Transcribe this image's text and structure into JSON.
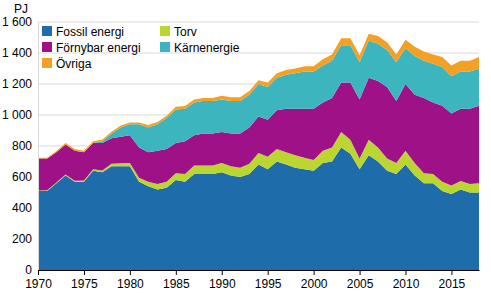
{
  "chart_data": {
    "type": "stacked_area",
    "y_label": "PJ",
    "x": [
      1970,
      1971,
      1972,
      1973,
      1974,
      1975,
      1976,
      1977,
      1978,
      1979,
      1980,
      1981,
      1982,
      1983,
      1984,
      1985,
      1986,
      1987,
      1988,
      1989,
      1990,
      1991,
      1992,
      1993,
      1994,
      1995,
      1996,
      1997,
      1998,
      1999,
      2000,
      2001,
      2002,
      2003,
      2004,
      2005,
      2006,
      2007,
      2008,
      2009,
      2010,
      2011,
      2012,
      2013,
      2014,
      2015,
      2016,
      2017,
      2018
    ],
    "xlim": [
      1970,
      2018
    ],
    "xticks": [
      1970,
      1975,
      1980,
      1985,
      1990,
      1995,
      2000,
      2005,
      2010,
      2015
    ],
    "ylim": [
      0,
      1600
    ],
    "yticks": [
      0,
      200,
      400,
      600,
      800,
      {
        "value": 1000,
        "label": "1 000"
      },
      {
        "value": 1200,
        "label": "1 200"
      },
      {
        "value": 1400,
        "label": "1 400"
      },
      {
        "value": 1600,
        "label": "1 600"
      }
    ],
    "grid": true,
    "stacked": true,
    "legend": "top-left",
    "series": [
      {
        "name": "Fossil energi",
        "color": "#1f6cab",
        "values": [
          510,
          510,
          560,
          610,
          570,
          570,
          640,
          630,
          670,
          670,
          670,
          570,
          540,
          520,
          530,
          580,
          570,
          620,
          620,
          620,
          630,
          610,
          600,
          620,
          680,
          650,
          700,
          680,
          660,
          650,
          640,
          690,
          700,
          790,
          750,
          650,
          740,
          700,
          640,
          620,
          680,
          610,
          560,
          560,
          510,
          490,
          520,
          500,
          500
        ]
      },
      {
        "name": "Torv",
        "color": "#bcd631",
        "values": [
          3,
          4,
          5,
          6,
          6,
          8,
          10,
          12,
          15,
          18,
          20,
          25,
          30,
          35,
          40,
          45,
          50,
          55,
          55,
          55,
          60,
          60,
          60,
          65,
          75,
          80,
          80,
          80,
          80,
          75,
          70,
          80,
          90,
          100,
          90,
          70,
          100,
          90,
          80,
          70,
          90,
          80,
          65,
          60,
          60,
          55,
          55,
          55,
          60
        ]
      },
      {
        "name": "Förnybar energi",
        "color": "#9e1187",
        "values": [
          207,
          206,
          195,
          194,
          194,
          182,
          170,
          178,
          165,
          172,
          180,
          195,
          190,
          215,
          210,
          195,
          210,
          195,
          205,
          205,
          200,
          210,
          220,
          235,
          235,
          240,
          250,
          280,
          300,
          315,
          330,
          310,
          320,
          320,
          370,
          380,
          400,
          430,
          460,
          400,
          430,
          440,
          485,
          460,
          490,
          465,
          465,
          485,
          500
        ]
      },
      {
        "name": "Kärnenergie",
        "color": "#3cb5be",
        "values": [
          0,
          0,
          0,
          0,
          0,
          0,
          0,
          10,
          30,
          60,
          70,
          150,
          160,
          170,
          200,
          215,
          210,
          210,
          210,
          210,
          210,
          210,
          210,
          210,
          210,
          210,
          210,
          220,
          230,
          240,
          240,
          240,
          240,
          240,
          240,
          240,
          240,
          240,
          240,
          250,
          230,
          250,
          240,
          250,
          250,
          240,
          240,
          240,
          240
        ]
      },
      {
        "name": "Övriga",
        "color": "#f4a024",
        "values": [
          5,
          5,
          8,
          10,
          10,
          10,
          10,
          12,
          12,
          12,
          12,
          12,
          15,
          15,
          15,
          18,
          18,
          20,
          20,
          20,
          25,
          25,
          25,
          25,
          25,
          30,
          30,
          30,
          30,
          35,
          35,
          40,
          40,
          45,
          45,
          45,
          45,
          50,
          50,
          50,
          55,
          60,
          60,
          60,
          65,
          70,
          70,
          70,
          75
        ]
      }
    ]
  }
}
